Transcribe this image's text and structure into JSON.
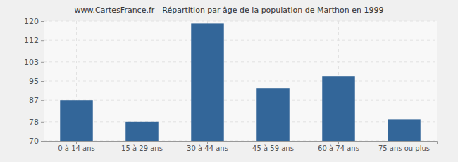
{
  "chart_data": {
    "type": "bar",
    "title": "www.CartesFrance.fr - Répartition par âge de la population de Marthon en 1999",
    "categories": [
      "0 à 14 ans",
      "15 à 29 ans",
      "30 à 44 ans",
      "45 à 59 ans",
      "60 à 74 ans",
      "75 ans ou plus"
    ],
    "values": [
      87,
      78,
      119,
      92,
      97,
      79
    ],
    "color": "#336699",
    "ylim": [
      70,
      120
    ],
    "yticks": [
      70,
      78,
      87,
      95,
      103,
      112,
      120
    ],
    "grid": true
  }
}
